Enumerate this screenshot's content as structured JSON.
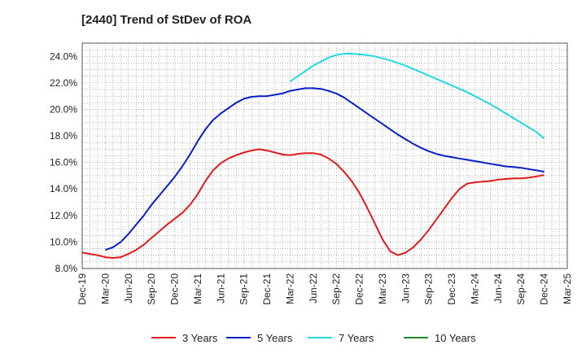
{
  "chart_data": {
    "type": "line",
    "title": "[2440]  Trend of StDev of ROA",
    "xlabel": "",
    "ylabel": "",
    "ylim": [
      8.0,
      25.0
    ],
    "y_ticks": [
      "8.0%",
      "10.0%",
      "12.0%",
      "14.0%",
      "16.0%",
      "18.0%",
      "20.0%",
      "22.0%",
      "24.0%"
    ],
    "x_ticks": [
      "Dec-19",
      "Mar-20",
      "Jun-20",
      "Sep-20",
      "Dec-20",
      "Mar-21",
      "Jun-21",
      "Sep-21",
      "Dec-21",
      "Mar-22",
      "Jun-22",
      "Sep-22",
      "Dec-22",
      "Mar-23",
      "Jun-23",
      "Sep-23",
      "Dec-23",
      "Mar-24",
      "Jun-24",
      "Sep-24",
      "Dec-24",
      "Mar-25"
    ],
    "grid": true,
    "legend_position": "bottom",
    "series": [
      {
        "name": "3 Years",
        "color": "#e31a1c",
        "x": [
          "Dec-19",
          "Jan-20",
          "Feb-20",
          "Mar-20",
          "Apr-20",
          "May-20",
          "Jun-20",
          "Jul-20",
          "Aug-20",
          "Sep-20",
          "Oct-20",
          "Nov-20",
          "Dec-20",
          "Jan-21",
          "Feb-21",
          "Mar-21",
          "Apr-21",
          "May-21",
          "Jun-21",
          "Jul-21",
          "Aug-21",
          "Sep-21",
          "Oct-21",
          "Nov-21",
          "Dec-21",
          "Jan-22",
          "Feb-22",
          "Mar-22",
          "Apr-22",
          "May-22",
          "Jun-22",
          "Jul-22",
          "Aug-22",
          "Sep-22",
          "Oct-22",
          "Nov-22",
          "Dec-22",
          "Jan-23",
          "Feb-23",
          "Mar-23",
          "Apr-23",
          "May-23",
          "Jun-23",
          "Jul-23",
          "Aug-23",
          "Sep-23",
          "Oct-23",
          "Nov-23",
          "Dec-23",
          "Jan-24",
          "Feb-24",
          "Mar-24",
          "Apr-24",
          "May-24",
          "Jun-24",
          "Jul-24",
          "Aug-24",
          "Sep-24",
          "Oct-24",
          "Nov-24",
          "Dec-24"
        ],
        "values": [
          9.2,
          9.1,
          9.0,
          8.85,
          8.8,
          8.85,
          9.1,
          9.4,
          9.8,
          10.3,
          10.8,
          11.3,
          11.75,
          12.2,
          12.8,
          13.6,
          14.6,
          15.4,
          15.95,
          16.3,
          16.55,
          16.75,
          16.9,
          17.0,
          16.9,
          16.75,
          16.6,
          16.55,
          16.65,
          16.7,
          16.7,
          16.6,
          16.3,
          15.9,
          15.3,
          14.6,
          13.7,
          12.6,
          11.4,
          10.2,
          9.3,
          9.0,
          9.2,
          9.6,
          10.2,
          10.9,
          11.7,
          12.5,
          13.3,
          14.0,
          14.4,
          14.5,
          14.55,
          14.6,
          14.7,
          14.75,
          14.8,
          14.8,
          14.85,
          14.95,
          15.05
        ]
      },
      {
        "name": "5 Years",
        "color": "#0a1ec8",
        "x": [
          "Mar-20",
          "Apr-20",
          "May-20",
          "Jun-20",
          "Jul-20",
          "Aug-20",
          "Sep-20",
          "Oct-20",
          "Nov-20",
          "Dec-20",
          "Jan-21",
          "Feb-21",
          "Mar-21",
          "Apr-21",
          "May-21",
          "Jun-21",
          "Jul-21",
          "Aug-21",
          "Sep-21",
          "Oct-21",
          "Nov-21",
          "Dec-21",
          "Jan-22",
          "Feb-22",
          "Mar-22",
          "Apr-22",
          "May-22",
          "Jun-22",
          "Jul-22",
          "Aug-22",
          "Sep-22",
          "Oct-22",
          "Nov-22",
          "Dec-22",
          "Jan-23",
          "Feb-23",
          "Mar-23",
          "Apr-23",
          "May-23",
          "Jun-23",
          "Jul-23",
          "Aug-23",
          "Sep-23",
          "Oct-23",
          "Nov-23",
          "Dec-23",
          "Jan-24",
          "Feb-24",
          "Mar-24",
          "Apr-24",
          "May-24",
          "Jun-24",
          "Jul-24",
          "Aug-24",
          "Sep-24",
          "Oct-24",
          "Nov-24",
          "Dec-24"
        ],
        "values": [
          9.4,
          9.6,
          10.0,
          10.6,
          11.3,
          12.0,
          12.8,
          13.5,
          14.2,
          14.9,
          15.7,
          16.6,
          17.6,
          18.5,
          19.2,
          19.7,
          20.1,
          20.5,
          20.8,
          20.95,
          21.0,
          21.0,
          21.1,
          21.2,
          21.4,
          21.5,
          21.6,
          21.6,
          21.55,
          21.4,
          21.2,
          20.9,
          20.5,
          20.1,
          19.7,
          19.3,
          18.9,
          18.5,
          18.1,
          17.75,
          17.4,
          17.1,
          16.85,
          16.65,
          16.5,
          16.4,
          16.3,
          16.2,
          16.1,
          16.0,
          15.9,
          15.8,
          15.7,
          15.65,
          15.6,
          15.5,
          15.4,
          15.3
        ]
      },
      {
        "name": "7 Years",
        "color": "#22d8e6",
        "x": [
          "Mar-22",
          "Apr-22",
          "May-22",
          "Jun-22",
          "Jul-22",
          "Aug-22",
          "Sep-22",
          "Oct-22",
          "Nov-22",
          "Dec-22",
          "Jan-23",
          "Feb-23",
          "Mar-23",
          "Apr-23",
          "May-23",
          "Jun-23",
          "Jul-23",
          "Aug-23",
          "Sep-23",
          "Oct-23",
          "Nov-23",
          "Dec-23",
          "Jan-24",
          "Feb-24",
          "Mar-24",
          "Apr-24",
          "May-24",
          "Jun-24",
          "Jul-24",
          "Aug-24",
          "Sep-24",
          "Oct-24",
          "Nov-24",
          "Dec-24"
        ],
        "values": [
          22.1,
          22.5,
          22.9,
          23.3,
          23.6,
          23.9,
          24.1,
          24.2,
          24.2,
          24.15,
          24.1,
          24.0,
          23.85,
          23.7,
          23.5,
          23.3,
          23.05,
          22.8,
          22.55,
          22.3,
          22.05,
          21.8,
          21.55,
          21.3,
          21.0,
          20.7,
          20.4,
          20.05,
          19.7,
          19.35,
          19.0,
          18.65,
          18.3,
          17.8
        ]
      },
      {
        "name": "10 Years",
        "color": "#1e8c1e",
        "x": [],
        "values": []
      }
    ]
  }
}
